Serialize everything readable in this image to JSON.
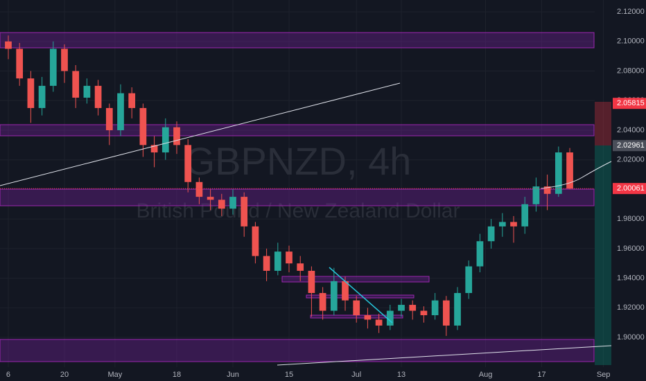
{
  "chart_data": {
    "type": "candlestick",
    "watermark_title": "GBPNZD, 4h",
    "watermark_subtitle": "British Pound / New Zealand Dollar",
    "up_color": "#26a69a",
    "down_color": "#ef5350",
    "grid": true,
    "x": [
      0,
      2,
      4,
      6,
      8,
      10,
      12,
      14,
      16,
      18,
      20,
      22,
      24,
      26,
      28,
      30,
      32,
      34,
      36,
      38,
      40,
      42,
      44,
      46,
      48,
      50,
      52,
      54,
      56,
      58,
      60,
      62,
      64,
      66,
      68,
      70,
      72,
      74,
      76,
      78,
      80,
      82,
      84,
      86,
      88,
      90,
      92,
      94,
      96,
      98,
      100
    ],
    "open": [
      2.1,
      2.095,
      2.075,
      2.055,
      2.07,
      2.095,
      2.08,
      2.062,
      2.07,
      2.055,
      2.04,
      2.065,
      2.055,
      2.03,
      2.025,
      2.042,
      2.03,
      2.005,
      1.995,
      1.993,
      1.987,
      1.995,
      1.975,
      1.955,
      1.945,
      1.958,
      1.95,
      1.945,
      1.93,
      1.918,
      1.938,
      1.925,
      1.915,
      1.912,
      1.908,
      1.918,
      1.922,
      1.918,
      1.915,
      1.925,
      1.908,
      1.93,
      1.948,
      1.965,
      1.975,
      1.978,
      1.975,
      1.99,
      2.002,
      1.997,
      2.025
    ],
    "high": [
      2.104,
      2.099,
      2.08,
      2.076,
      2.1,
      2.098,
      2.084,
      2.075,
      2.074,
      2.058,
      2.071,
      2.069,
      2.058,
      2.036,
      2.048,
      2.046,
      2.034,
      2.008,
      2.0,
      1.997,
      2.0,
      1.998,
      1.978,
      1.96,
      1.964,
      1.962,
      1.955,
      1.948,
      1.934,
      1.947,
      1.941,
      1.928,
      1.92,
      1.916,
      1.922,
      1.926,
      1.925,
      1.921,
      1.93,
      1.928,
      1.934,
      1.952,
      1.97,
      1.98,
      1.984,
      1.982,
      1.995,
      2.008,
      2.01,
      2.029,
      2.028
    ],
    "low": [
      2.088,
      2.07,
      2.045,
      2.05,
      2.066,
      2.072,
      2.055,
      2.058,
      2.05,
      2.03,
      2.036,
      2.048,
      2.022,
      2.015,
      2.02,
      2.024,
      1.998,
      1.99,
      1.986,
      1.982,
      1.983,
      1.968,
      1.95,
      1.938,
      1.942,
      1.944,
      1.938,
      1.914,
      1.912,
      1.915,
      1.918,
      1.91,
      1.906,
      1.903,
      1.905,
      1.914,
      1.912,
      1.91,
      1.912,
      1.901,
      1.905,
      1.926,
      1.944,
      1.96,
      1.968,
      1.964,
      1.97,
      1.985,
      1.986,
      1.995,
      2.0
    ],
    "close": [
      2.095,
      2.075,
      2.055,
      2.07,
      2.095,
      2.08,
      2.062,
      2.07,
      2.055,
      2.04,
      2.065,
      2.055,
      2.03,
      2.025,
      2.042,
      2.03,
      2.005,
      1.995,
      1.993,
      1.987,
      1.995,
      1.975,
      1.955,
      1.945,
      1.958,
      1.95,
      1.945,
      1.93,
      1.918,
      1.938,
      1.925,
      1.915,
      1.912,
      1.908,
      1.918,
      1.922,
      1.918,
      1.915,
      1.925,
      1.908,
      1.93,
      1.948,
      1.965,
      1.975,
      1.978,
      1.975,
      1.99,
      2.002,
      1.997,
      2.025,
      2.0006
    ],
    "xlim": [
      -1.48,
      104.44
    ],
    "xticks": [
      {
        "value": 0,
        "label": "6"
      },
      {
        "value": 10,
        "label": "20"
      },
      {
        "value": 19,
        "label": "May"
      },
      {
        "value": 30,
        "label": "18"
      },
      {
        "value": 40,
        "label": "Jun"
      },
      {
        "value": 50,
        "label": "15"
      },
      {
        "value": 62,
        "label": "Jul"
      },
      {
        "value": 70,
        "label": "13"
      },
      {
        "value": 85,
        "label": "Aug"
      },
      {
        "value": 95,
        "label": "17"
      },
      {
        "value": 106,
        "label": "Sep"
      }
    ],
    "ylim": [
      1.8799,
      2.128
    ],
    "yticks": [
      {
        "value": 1.9,
        "label": "1.90000"
      },
      {
        "value": 1.92,
        "label": "1.92000"
      },
      {
        "value": 1.94,
        "label": "1.94000"
      },
      {
        "value": 1.96,
        "label": "1.96000"
      },
      {
        "value": 1.98,
        "label": "1.98000"
      },
      {
        "value": 2.0,
        "label": "2.00000"
      },
      {
        "value": 2.02,
        "label": "2.02000"
      },
      {
        "value": 2.04,
        "label": "2.04000"
      },
      {
        "value": 2.06,
        "label": "2.06000"
      },
      {
        "value": 2.08,
        "label": "2.08000"
      },
      {
        "value": 2.1,
        "label": "2.10000"
      },
      {
        "value": 2.12,
        "label": "2.12000"
      }
    ],
    "price_markers": [
      {
        "value": 2.05815,
        "color": "#f23645"
      },
      {
        "value": 2.02961,
        "color": "#4a4e59"
      },
      {
        "value": 2.00061,
        "color": "#f23645"
      }
    ]
  }
}
